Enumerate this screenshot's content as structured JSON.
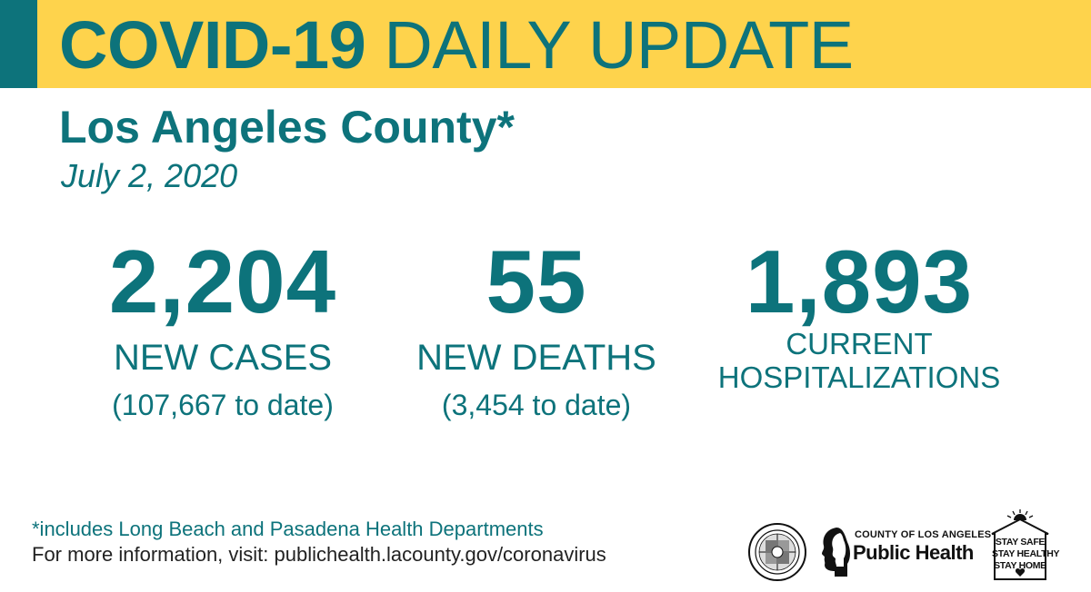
{
  "header": {
    "title_bold": "COVID-19",
    "title_light": " DAILY UPDATE"
  },
  "location": "Los Angeles County*",
  "date": "July 2, 2020",
  "stats": [
    {
      "value": "2,204",
      "label": "NEW CASES",
      "sub": "(107,667 to date)"
    },
    {
      "value": "55",
      "label": "NEW DEATHS",
      "sub": "(3,454 to date)"
    },
    {
      "value": "1,893",
      "label_line1": "CURRENT",
      "label_line2": "HOSPITALIZATIONS"
    }
  ],
  "footnote": "*includes Long Beach and Pasadena Health Departments",
  "more_info": "For more information, visit: publichealth.lacounty.gov/coronavirus",
  "logos": {
    "public_health_small": "COUNTY OF LOS ANGELES",
    "public_health_big": "Public Health",
    "stay_safe": [
      "STAY SAFE",
      "STAY HEALTHY",
      "STAY HOME"
    ]
  },
  "colors": {
    "banner": "#fed34c",
    "accent": "#0d737b",
    "text_dark": "#222222",
    "background": "#ffffff"
  },
  "icons": [
    "county-seal-icon",
    "public-health-silhouette-icon",
    "house-icon",
    "sun-icon",
    "heart-icon"
  ]
}
